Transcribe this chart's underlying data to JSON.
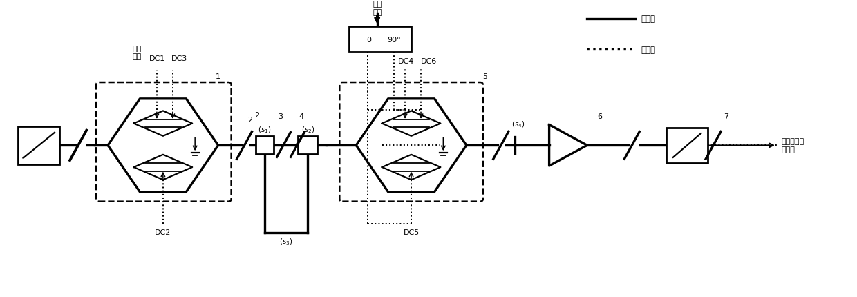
{
  "bg_color": "#ffffff",
  "line_color": "#000000",
  "fig_width": 12.4,
  "fig_height": 4.31,
  "legend_optical_label": "光信号",
  "legend_electrical_label": "电信号",
  "labels": {
    "ben_zhen": "本振\n信号",
    "dc1": "DC1",
    "dc2": "DC2",
    "dc3": "DC3",
    "dc4": "DC4",
    "dc5": "DC5",
    "dc6": "DC6",
    "she_pin": "射频\n信号",
    "si_bei": "四倍频上转\n换信号",
    "s1": "$(s_1)$",
    "s2": "$(s_2)$",
    "s3": "$(s_3)$",
    "s4": "$(s_4)$",
    "n1": "1",
    "n2": "2",
    "n3": "3",
    "n4": "4",
    "n5": "5",
    "n6": "6",
    "n7": "7",
    "hybrid_0": "0",
    "hybrid_90": "90°"
  }
}
